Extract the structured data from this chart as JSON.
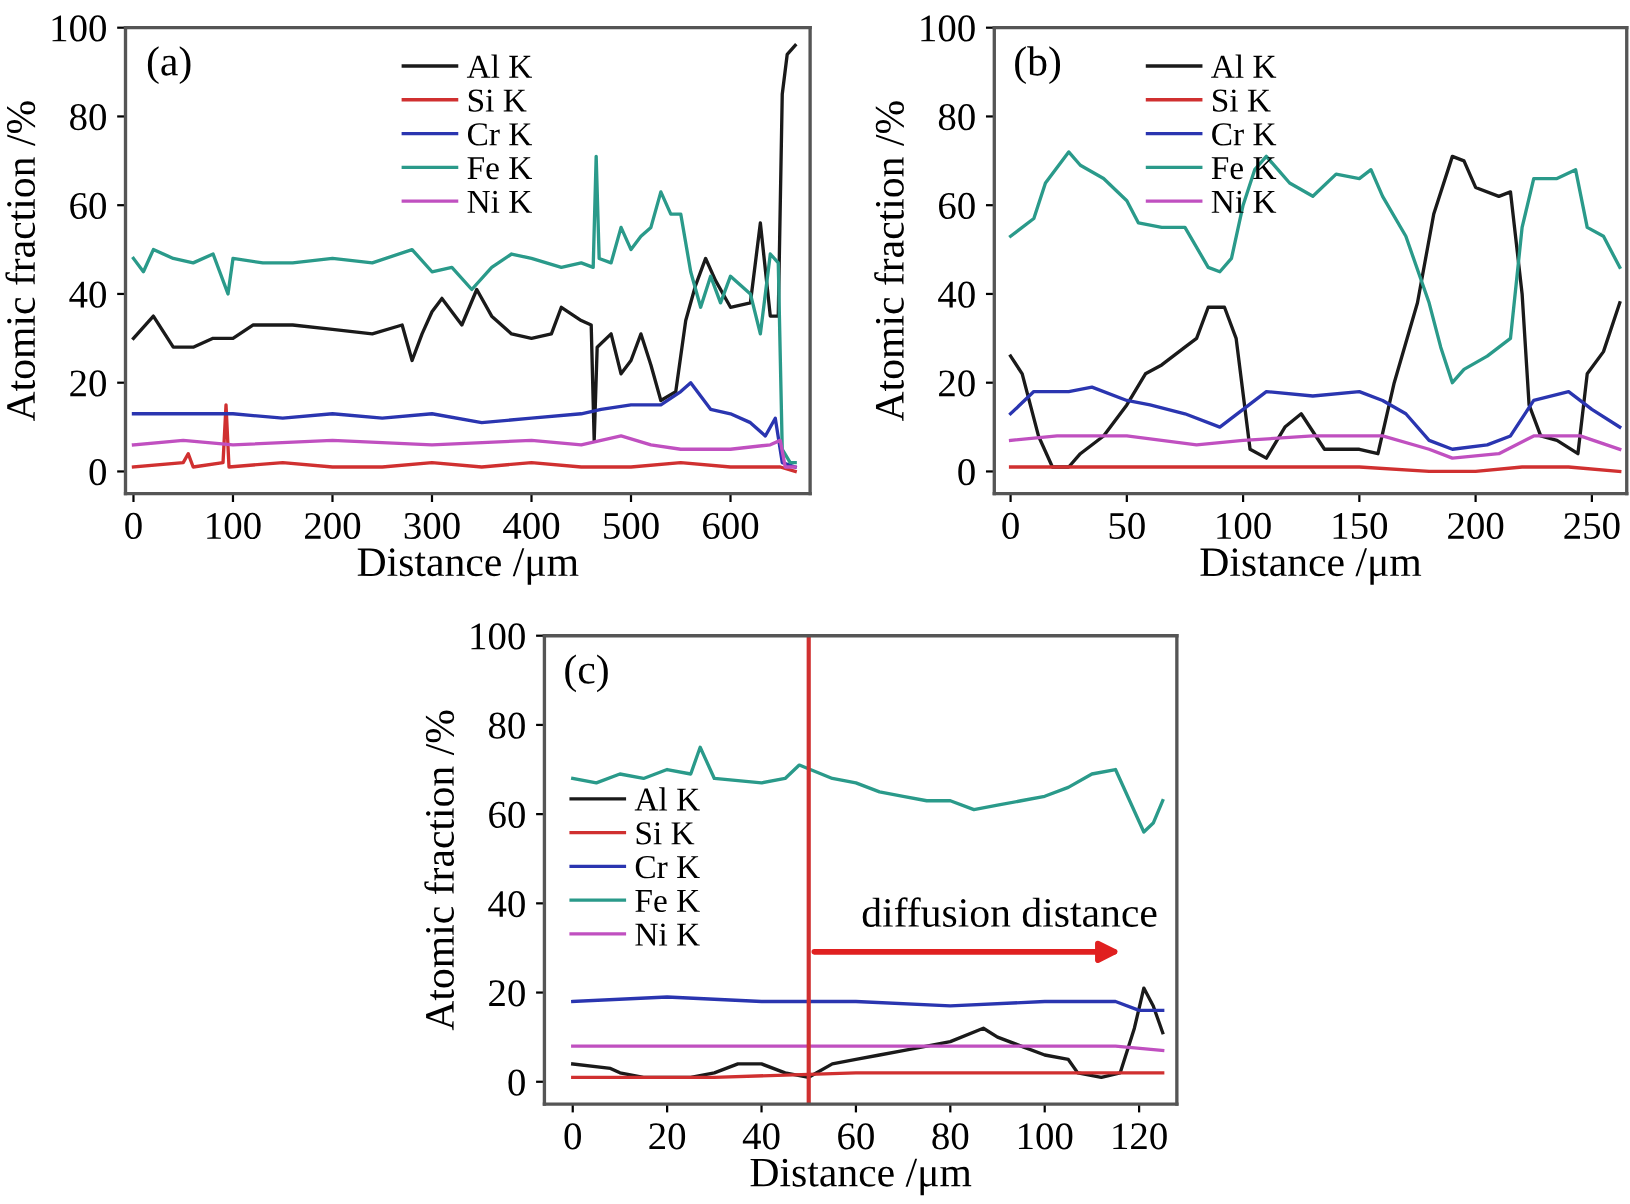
{
  "chart_data": [
    {
      "type": "line",
      "title": "(a)",
      "xlabel": "Distance /μm",
      "ylabel": "Atomic fraction /%",
      "xlim": [
        -8,
        680
      ],
      "ylim": [
        -5,
        100
      ],
      "xticks": [
        0,
        100,
        200,
        300,
        400,
        500,
        600
      ],
      "yticks": [
        0,
        20,
        40,
        60,
        80,
        100
      ],
      "legend": "top",
      "grid": false,
      "series": [
        {
          "name": "Al K",
          "color": "#1a1a1a",
          "x": [
            0,
            20,
            40,
            60,
            80,
            100,
            120,
            160,
            200,
            240,
            270,
            280,
            290,
            300,
            310,
            320,
            330,
            345,
            360,
            380,
            400,
            420,
            430,
            450,
            460,
            463,
            466,
            480,
            490,
            500,
            510,
            520,
            530,
            545,
            555,
            565,
            575,
            585,
            600,
            620,
            630,
            640,
            648,
            652,
            657,
            665
          ],
          "values": [
            30,
            35,
            28,
            28,
            30,
            30,
            33,
            33,
            32,
            31,
            33,
            25,
            31,
            36,
            39,
            36,
            33,
            41,
            35,
            31,
            30,
            31,
            37,
            34,
            33,
            7,
            28,
            31,
            22,
            25,
            31,
            24,
            16,
            18,
            34,
            42,
            48,
            43,
            37,
            38,
            56,
            35,
            35,
            85,
            94,
            96
          ]
        },
        {
          "name": "Si K",
          "color": "#d03030",
          "x": [
            0,
            50,
            55,
            60,
            90,
            93,
            96,
            150,
            200,
            250,
            300,
            350,
            400,
            450,
            500,
            550,
            600,
            650,
            665
          ],
          "values": [
            1,
            2,
            4,
            1,
            2,
            15,
            1,
            2,
            1,
            1,
            2,
            1,
            2,
            1,
            1,
            2,
            1,
            1,
            0
          ]
        },
        {
          "name": "Cr K",
          "color": "#2a35b0",
          "x": [
            0,
            40,
            100,
            150,
            200,
            250,
            300,
            350,
            400,
            450,
            470,
            500,
            530,
            550,
            560,
            580,
            600,
            620,
            635,
            645,
            652,
            665
          ],
          "values": [
            13,
            13,
            13,
            12,
            13,
            12,
            13,
            11,
            12,
            13,
            14,
            15,
            15,
            18,
            20,
            14,
            13,
            11,
            8,
            12,
            2,
            1
          ]
        },
        {
          "name": "Fe K",
          "color": "#2a9a8a",
          "x": [
            0,
            10,
            20,
            40,
            60,
            80,
            95,
            100,
            130,
            160,
            200,
            240,
            280,
            300,
            320,
            340,
            360,
            380,
            400,
            430,
            450,
            462,
            465,
            468,
            480,
            490,
            500,
            510,
            520,
            530,
            540,
            550,
            560,
            570,
            580,
            590,
            600,
            620,
            630,
            640,
            648,
            652,
            660,
            665
          ],
          "values": [
            48,
            45,
            50,
            48,
            47,
            49,
            40,
            48,
            47,
            47,
            48,
            47,
            50,
            45,
            46,
            41,
            46,
            49,
            48,
            46,
            47,
            46,
            71,
            48,
            47,
            55,
            50,
            53,
            55,
            63,
            58,
            58,
            45,
            37,
            44,
            38,
            44,
            40,
            31,
            49,
            47,
            5,
            2,
            2
          ]
        },
        {
          "name": "Ni K",
          "color": "#c050c0",
          "x": [
            0,
            50,
            100,
            200,
            300,
            400,
            450,
            490,
            520,
            550,
            570,
            600,
            640,
            650,
            655,
            665
          ],
          "values": [
            6,
            7,
            6,
            7,
            6,
            7,
            6,
            8,
            6,
            5,
            5,
            5,
            6,
            7,
            1,
            1
          ]
        }
      ]
    },
    {
      "type": "line",
      "title": "(b)",
      "xlabel": "Distance /μm",
      "ylabel": "Atomic fraction /%",
      "xlim": [
        -7,
        265
      ],
      "ylim": [
        -5,
        100
      ],
      "xticks": [
        0,
        50,
        100,
        150,
        200,
        250
      ],
      "yticks": [
        0,
        20,
        40,
        60,
        80,
        100
      ],
      "legend": "top left",
      "grid": false,
      "series": [
        {
          "name": "Al K",
          "color": "#1a1a1a",
          "x": [
            0,
            5,
            12,
            18,
            25,
            30,
            40,
            50,
            58,
            65,
            75,
            80,
            85,
            92,
            97,
            103,
            110,
            118,
            125,
            130,
            135,
            150,
            158,
            165,
            175,
            182,
            190,
            195,
            200,
            210,
            215,
            220,
            223,
            228,
            235,
            244,
            248,
            255,
            262
          ],
          "values": [
            26,
            22,
            8,
            1,
            1,
            4,
            8,
            15,
            22,
            24,
            28,
            30,
            37,
            37,
            30,
            5,
            3,
            10,
            13,
            9,
            5,
            5,
            4,
            20,
            38,
            58,
            71,
            70,
            64,
            62,
            63,
            40,
            15,
            8,
            7,
            4,
            22,
            27,
            38
          ]
        },
        {
          "name": "Si K",
          "color": "#d03030",
          "x": [
            0,
            20,
            50,
            100,
            150,
            180,
            200,
            220,
            240,
            262
          ],
          "values": [
            1,
            1,
            1,
            1,
            1,
            0,
            0,
            1,
            1,
            0
          ]
        },
        {
          "name": "Cr K",
          "color": "#2a35b0",
          "x": [
            0,
            10,
            25,
            35,
            50,
            60,
            75,
            90,
            100,
            110,
            130,
            150,
            160,
            170,
            180,
            190,
            205,
            215,
            225,
            240,
            250,
            262
          ],
          "values": [
            13,
            18,
            18,
            19,
            16,
            15,
            13,
            10,
            14,
            18,
            17,
            18,
            16,
            13,
            7,
            5,
            6,
            8,
            16,
            18,
            14,
            10
          ]
        },
        {
          "name": "Fe K",
          "color": "#2a9a8a",
          "x": [
            0,
            10,
            15,
            25,
            30,
            40,
            50,
            55,
            65,
            75,
            85,
            90,
            95,
            100,
            105,
            110,
            115,
            120,
            130,
            140,
            150,
            155,
            160,
            170,
            180,
            185,
            190,
            195,
            205,
            215,
            220,
            225,
            235,
            243,
            248,
            255,
            262
          ],
          "values": [
            53,
            57,
            65,
            72,
            69,
            66,
            61,
            56,
            55,
            55,
            46,
            45,
            48,
            60,
            68,
            71,
            68,
            65,
            62,
            67,
            66,
            68,
            62,
            53,
            38,
            28,
            20,
            23,
            26,
            30,
            55,
            66,
            66,
            68,
            55,
            53,
            46
          ]
        },
        {
          "name": "Ni K",
          "color": "#c050c0",
          "x": [
            0,
            20,
            50,
            80,
            100,
            130,
            160,
            180,
            190,
            210,
            225,
            245,
            262
          ],
          "values": [
            7,
            8,
            8,
            6,
            7,
            8,
            8,
            5,
            3,
            4,
            8,
            8,
            5
          ]
        }
      ]
    },
    {
      "type": "line",
      "title": "(c)",
      "xlabel": "Distance /μm",
      "ylabel": "Atomic fraction /%",
      "xlim": [
        -6,
        128
      ],
      "ylim": [
        -5,
        100
      ],
      "xticks": [
        0,
        20,
        40,
        60,
        80,
        100,
        120
      ],
      "yticks": [
        0,
        20,
        40,
        60,
        80,
        100
      ],
      "legend": "left",
      "grid": false,
      "ref_lines": [
        {
          "axis": "x",
          "value": 50,
          "color": "#d03030"
        }
      ],
      "annotations": [
        "diffusion distance"
      ],
      "series": [
        {
          "name": "Al K",
          "color": "#1a1a1a",
          "x": [
            0,
            8,
            10,
            15,
            25,
            30,
            35,
            40,
            45,
            50,
            55,
            60,
            65,
            70,
            80,
            87,
            90,
            95,
            100,
            105,
            107,
            112,
            116,
            119,
            121,
            123,
            125
          ],
          "values": [
            4,
            3,
            2,
            1,
            1,
            2,
            4,
            4,
            2,
            1,
            4,
            5,
            6,
            7,
            9,
            12,
            10,
            8,
            6,
            5,
            2,
            1,
            2,
            12,
            21,
            17,
            11
          ]
        },
        {
          "name": "Si K",
          "color": "#d03030",
          "x": [
            0,
            30,
            60,
            90,
            110,
            125
          ],
          "values": [
            1,
            1,
            2,
            2,
            2,
            2
          ]
        },
        {
          "name": "Cr K",
          "color": "#2a35b0",
          "x": [
            0,
            20,
            40,
            60,
            80,
            100,
            115,
            120,
            125
          ],
          "values": [
            18,
            19,
            18,
            18,
            17,
            18,
            18,
            16,
            16
          ]
        },
        {
          "name": "Fe K",
          "color": "#2a9a8a",
          "x": [
            0,
            5,
            10,
            15,
            20,
            25,
            27,
            30,
            40,
            45,
            48,
            55,
            60,
            65,
            70,
            75,
            80,
            85,
            90,
            95,
            100,
            105,
            110,
            115,
            118,
            121,
            123,
            125
          ],
          "values": [
            68,
            67,
            69,
            68,
            70,
            69,
            75,
            68,
            67,
            68,
            71,
            68,
            67,
            65,
            64,
            63,
            63,
            61,
            62,
            63,
            64,
            66,
            69,
            70,
            63,
            56,
            58,
            63
          ]
        },
        {
          "name": "Ni K",
          "color": "#c050c0",
          "x": [
            0,
            30,
            60,
            90,
            115,
            125
          ],
          "values": [
            8,
            8,
            8,
            8,
            8,
            7
          ]
        }
      ]
    }
  ]
}
